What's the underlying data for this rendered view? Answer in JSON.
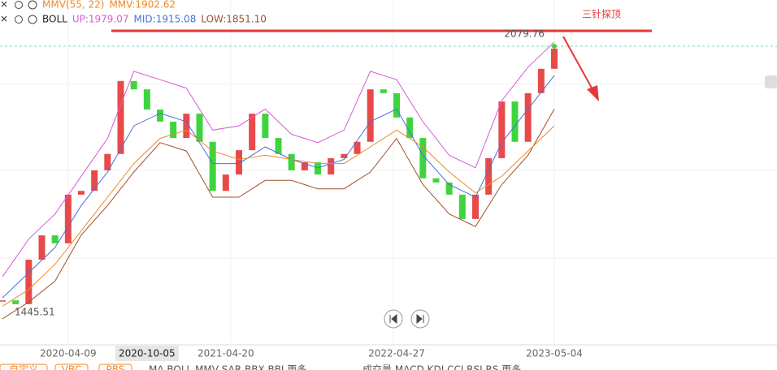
{
  "chart_data": {
    "type": "candlestick",
    "indicators": [
      {
        "name": "MMV(55, 22)",
        "readouts": [
          "MMV:1902.62"
        ],
        "colors": [
          "#f08a24"
        ]
      },
      {
        "name": "BOLL",
        "readouts": [
          "UP:1979.07",
          "MID:1915.08",
          "LOW:1851.10"
        ],
        "colors": [
          "#d65bd6",
          "#4a6fe0",
          "#a0522d"
        ]
      }
    ],
    "categories": [
      null,
      null,
      null,
      null,
      null,
      "2020-04-09",
      null,
      null,
      null,
      null,
      null,
      "2020-10-05",
      null,
      null,
      null,
      null,
      null,
      "2021-04-20",
      null,
      null,
      null,
      null,
      null,
      null,
      null,
      null,
      null,
      null,
      null,
      null,
      "2022-04-27",
      null,
      null,
      null,
      null,
      null,
      null,
      null,
      null,
      null,
      null,
      null,
      "2023-05-04"
    ],
    "highlighted_category": "2020-10-05",
    "close": [
      1474,
      1465,
      1571,
      1629,
      1610,
      1726,
      1735,
      1784,
      1823,
      1997,
      1977,
      1929,
      1900,
      1861,
      1919,
      1852,
      1735,
      1774,
      1832,
      1919,
      1861,
      1823,
      1784,
      1803,
      1774,
      1813,
      1823,
      1852,
      1977,
      1968,
      1910,
      1861,
      1765,
      1755,
      1726,
      1668,
      1726,
      1813,
      1948,
      1852,
      1968,
      2026,
      2074
    ],
    "up_color": "#e84a4a",
    "down_color": "#3fd43f",
    "line_x": [
      0,
      2,
      4,
      6,
      8,
      10,
      12,
      14,
      16,
      18,
      20,
      22,
      24,
      26,
      28,
      30,
      32,
      34,
      36,
      38,
      40,
      42
    ],
    "lines": [
      {
        "color": "#d65bd6",
        "values": [
          1530,
          1620,
          1680,
          1770,
          1860,
          2020,
          2000,
          1980,
          1880,
          1890,
          1930,
          1870,
          1850,
          1880,
          2020,
          2000,
          1900,
          1820,
          1790,
          1950,
          2030,
          2090
        ]
      },
      {
        "color": "#4a6fe0",
        "values": [
          1480,
          1540,
          1600,
          1700,
          1780,
          1890,
          1920,
          1900,
          1800,
          1800,
          1840,
          1810,
          1790,
          1810,
          1900,
          1930,
          1820,
          1750,
          1720,
          1850,
          1930,
          2010
        ]
      },
      {
        "color": "#a0522d",
        "values": [
          1430,
          1470,
          1520,
          1630,
          1700,
          1780,
          1850,
          1830,
          1720,
          1720,
          1760,
          1760,
          1740,
          1740,
          1780,
          1860,
          1750,
          1680,
          1650,
          1750,
          1820,
          1930
        ]
      },
      {
        "color": "#f08a24",
        "values": [
          1460,
          1500,
          1560,
          1640,
          1720,
          1800,
          1860,
          1880,
          1830,
          1810,
          1820,
          1810,
          1800,
          1800,
          1840,
          1880,
          1840,
          1780,
          1730,
          1770,
          1830,
          1890
        ]
      }
    ],
    "ylim": [
      1368,
      2190
    ],
    "high_label": 2079.76,
    "low_label": 1445.51,
    "annotation": "三针探顶"
  },
  "toolbar": {
    "left": [
      "自定义",
      "VBC",
      "PBS"
    ],
    "main": "MA  BOLL  MMV  SAR  BBX  BBI  更多",
    "sub": "成交量  MACD  KDJ  CCI  RSI  RS  更多"
  }
}
